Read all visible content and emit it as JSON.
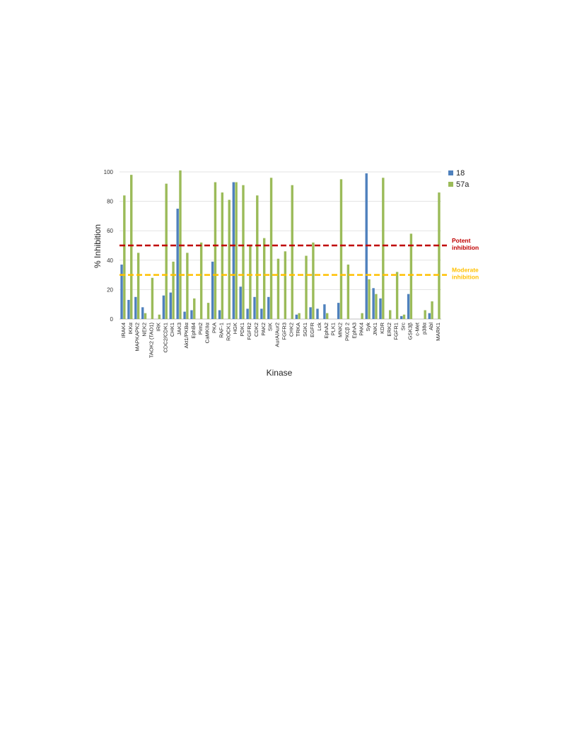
{
  "chart_data": {
    "type": "bar",
    "title": "",
    "xlabel": "Kinase",
    "ylabel": "% Inhibition",
    "ylim": [
      0,
      100
    ],
    "yticks": [
      0,
      20,
      40,
      60,
      80,
      100
    ],
    "grid": true,
    "legend_position": "right",
    "categories": [
      "IRAK4",
      "IKKα",
      "MAPKAPK2",
      "NEK2",
      "TAOK2 (TAO1)",
      "IRK",
      "CDC2/CDK1",
      "CHK1",
      "JAK3",
      "Akt1/PKBα",
      "EphB4",
      "Pim2",
      "CaMKIIα",
      "PKA",
      "RAF-1",
      "ROCK1",
      "HGK",
      "PDK1",
      "FGFR2",
      "CDK2",
      "PAK2",
      "SIK",
      "AurA/Aur2",
      "FGFR3",
      "CHK2",
      "TRKA",
      "SGK1",
      "EGFR",
      "Lck",
      "EphA2",
      "PLK1",
      "MNK2",
      "PKCβ 2",
      "EphA3",
      "PAK4",
      "Syk",
      "JNK1",
      "KDR",
      "ERK2",
      "FGFR1",
      "Src",
      "GSK3β",
      "c-Met",
      "p38α",
      "Abl",
      "MARK1"
    ],
    "series": [
      {
        "name": "18",
        "color": "#4F81BD",
        "values": [
          37,
          13,
          15,
          8,
          0,
          0,
          16,
          18,
          75,
          5,
          6,
          0,
          0,
          39,
          6,
          0,
          93,
          22,
          7,
          15,
          7,
          15,
          0,
          0,
          0,
          3,
          0,
          8,
          7,
          10,
          0,
          11,
          0,
          0,
          0,
          99,
          21,
          14,
          0,
          0,
          2,
          17,
          0,
          0,
          4,
          0
        ]
      },
      {
        "name": "57a",
        "color": "#9BBB59",
        "values": [
          84,
          98,
          45,
          4,
          28,
          3,
          92,
          39,
          101,
          45,
          14,
          52,
          11,
          93,
          86,
          81,
          93,
          91,
          50,
          84,
          55,
          96,
          41,
          46,
          91,
          4,
          43,
          52,
          0,
          4,
          0,
          95,
          37,
          0,
          4,
          27,
          17,
          96,
          6,
          32,
          3,
          58,
          0,
          6,
          12,
          86
        ]
      }
    ],
    "reference_lines": [
      {
        "value": 50,
        "color": "#C00000",
        "label_lines": [
          "Potent",
          "inhibition"
        ]
      },
      {
        "value": 30,
        "color": "#FFC000",
        "label_lines": [
          "Moderate",
          "inhibition"
        ]
      }
    ]
  }
}
